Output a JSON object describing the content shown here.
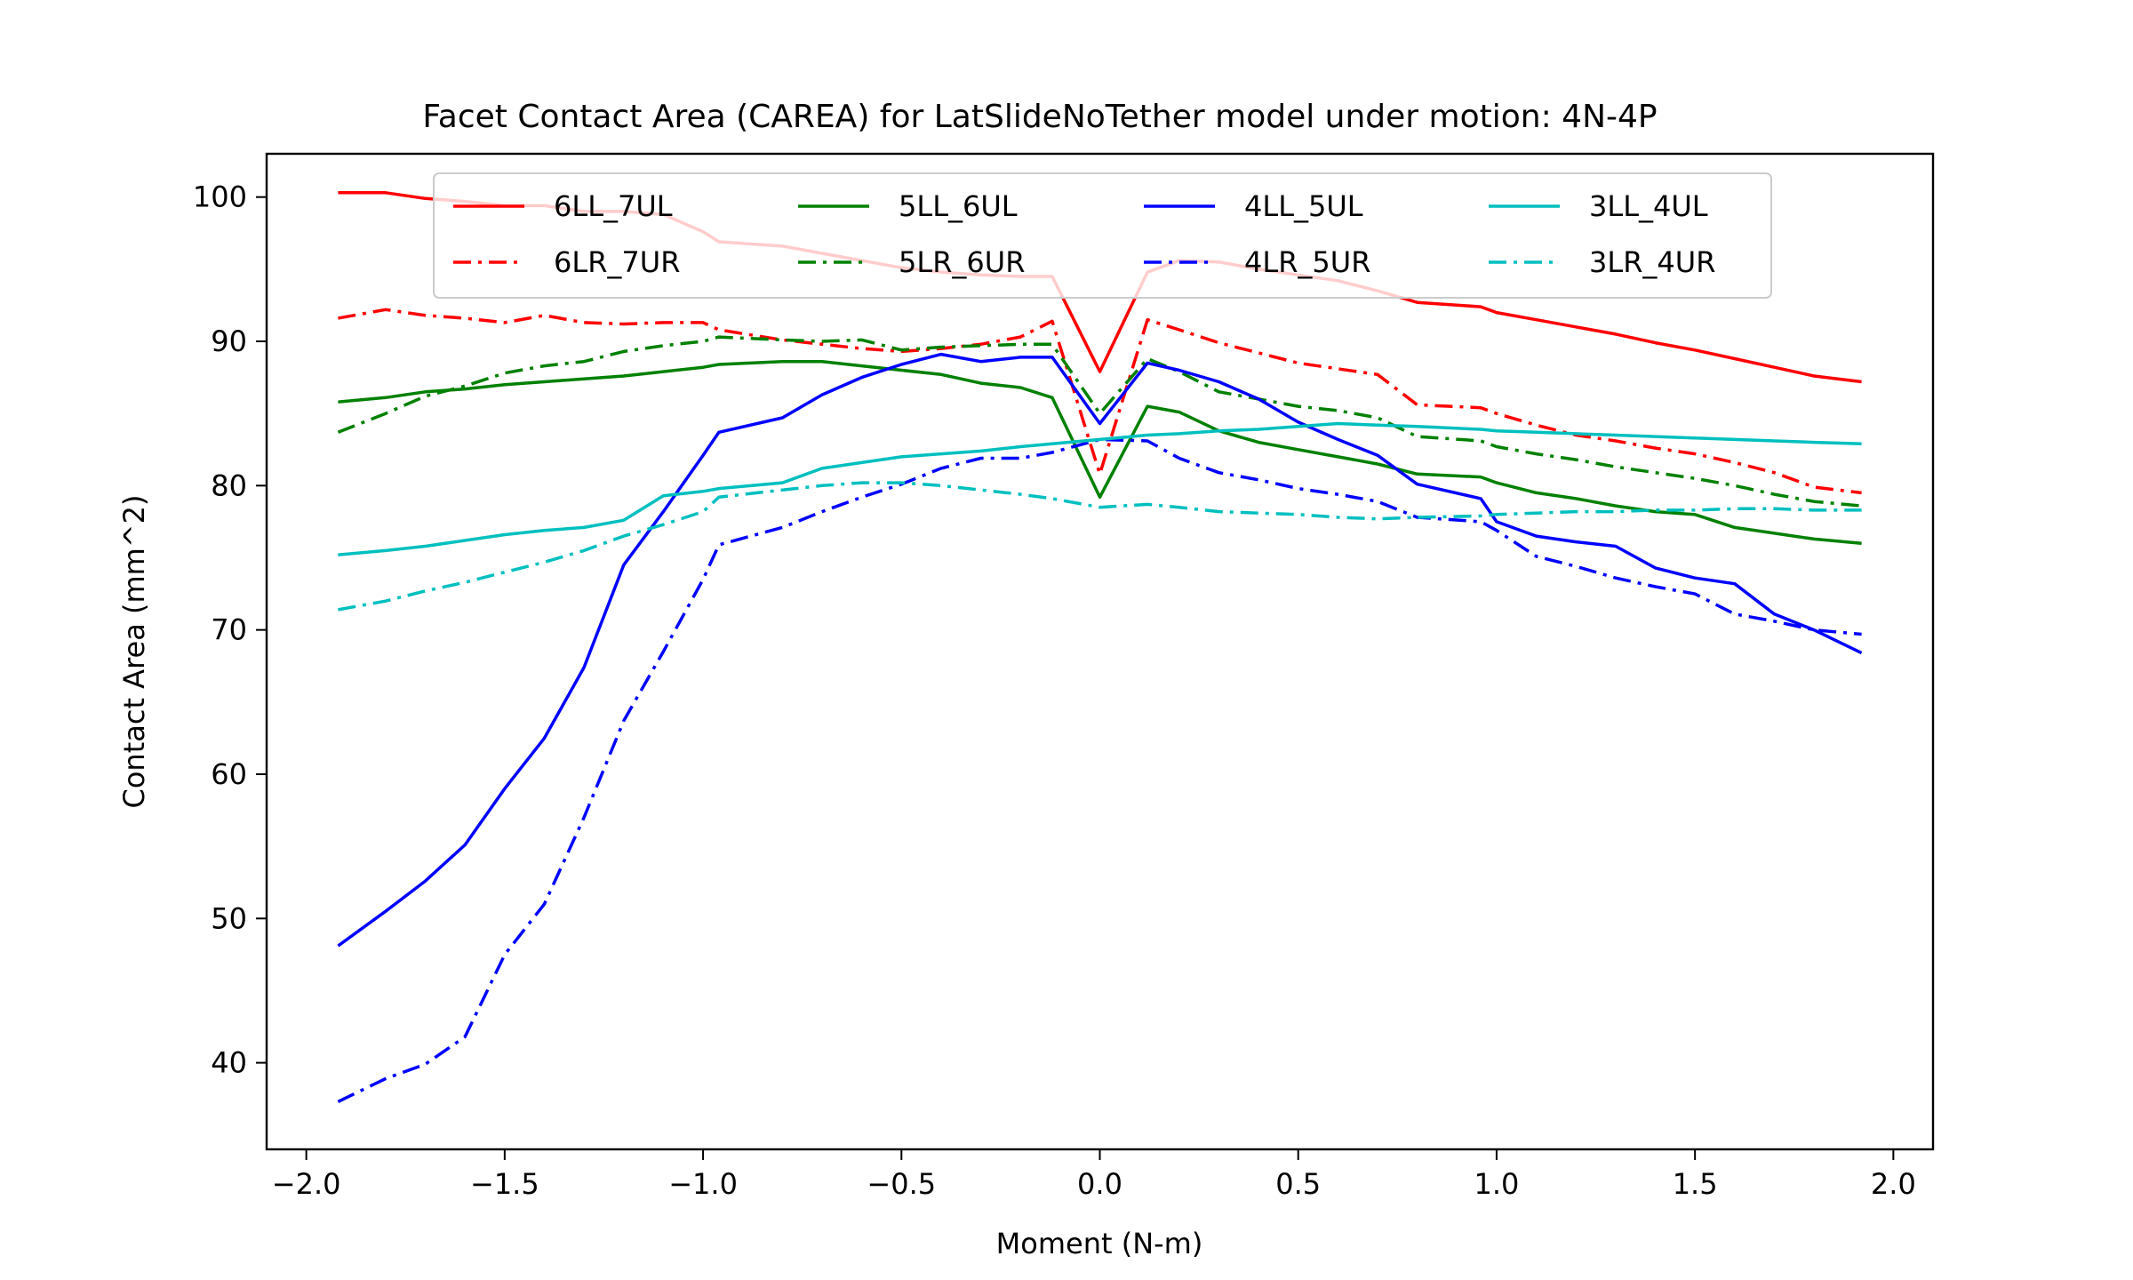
{
  "chart_data": {
    "type": "line",
    "title": "Facet Contact Area (CAREA) for LatSlideNoTether model under motion: 4N-4P",
    "xlabel": "Moment (N-m)",
    "ylabel": "Contact Area (mm^2)",
    "xlim": [
      -2.1,
      2.1
    ],
    "ylim": [
      34,
      103
    ],
    "xticks": [
      -2.0,
      -1.5,
      -1.0,
      -0.5,
      0.0,
      0.5,
      1.0,
      1.5,
      2.0
    ],
    "xtick_labels": [
      "−2.0",
      "−1.5",
      "−1.0",
      "−0.5",
      "0.0",
      "0.5",
      "1.0",
      "1.5",
      "2.0"
    ],
    "yticks": [
      40,
      50,
      60,
      70,
      80,
      90,
      100
    ],
    "ytick_labels": [
      "40",
      "50",
      "60",
      "70",
      "80",
      "90",
      "100"
    ],
    "grid": false,
    "legend": {
      "placement": "top-center",
      "columns": 4
    },
    "series": [
      {
        "name": "6LL_7UL",
        "color": "#ff0000",
        "dash": "solid",
        "x": [
          -1.92,
          -1.8,
          -1.7,
          -1.6,
          -1.5,
          -1.4,
          -1.3,
          -1.2,
          -1.1,
          -1.0,
          -0.96,
          -0.8,
          -0.7,
          -0.6,
          -0.5,
          -0.4,
          -0.3,
          -0.2,
          -0.12,
          0.0,
          0.12,
          0.2,
          0.3,
          0.4,
          0.5,
          0.6,
          0.7,
          0.8,
          0.96,
          1.0,
          1.1,
          1.2,
          1.3,
          1.4,
          1.5,
          1.6,
          1.7,
          1.8,
          1.92
        ],
        "y": [
          100.3,
          100.3,
          99.9,
          99.7,
          99.4,
          99.4,
          99.0,
          99.0,
          98.8,
          97.6,
          96.9,
          96.6,
          96.1,
          95.6,
          95.1,
          94.8,
          94.6,
          94.5,
          94.5,
          87.9,
          94.8,
          95.6,
          95.5,
          95.0,
          94.6,
          94.2,
          93.5,
          92.7,
          92.4,
          92.0,
          91.5,
          91.0,
          90.5,
          89.9,
          89.4,
          88.8,
          88.2,
          87.6,
          87.2
        ]
      },
      {
        "name": "6LR_7UR",
        "color": "#ff0000",
        "dash": "dashdot",
        "x": [
          -1.92,
          -1.8,
          -1.7,
          -1.6,
          -1.5,
          -1.4,
          -1.3,
          -1.2,
          -1.1,
          -1.0,
          -0.96,
          -0.8,
          -0.7,
          -0.6,
          -0.5,
          -0.4,
          -0.3,
          -0.2,
          -0.12,
          0.0,
          0.12,
          0.2,
          0.3,
          0.4,
          0.5,
          0.6,
          0.7,
          0.8,
          0.96,
          1.0,
          1.1,
          1.2,
          1.3,
          1.4,
          1.5,
          1.6,
          1.7,
          1.8,
          1.92
        ],
        "y": [
          91.6,
          92.2,
          91.8,
          91.6,
          91.3,
          91.8,
          91.3,
          91.2,
          91.3,
          91.3,
          90.8,
          90.1,
          89.8,
          89.5,
          89.3,
          89.5,
          89.8,
          90.3,
          91.4,
          80.8,
          91.5,
          90.8,
          89.9,
          89.2,
          88.5,
          88.1,
          87.7,
          85.6,
          85.4,
          85.0,
          84.2,
          83.5,
          83.1,
          82.6,
          82.2,
          81.6,
          80.9,
          79.9,
          79.5
        ]
      },
      {
        "name": "5LL_6UL",
        "color": "#008000",
        "dash": "solid",
        "x": [
          -1.92,
          -1.8,
          -1.7,
          -1.6,
          -1.5,
          -1.4,
          -1.3,
          -1.2,
          -1.1,
          -1.0,
          -0.96,
          -0.8,
          -0.7,
          -0.6,
          -0.5,
          -0.4,
          -0.3,
          -0.2,
          -0.12,
          0.0,
          0.12,
          0.2,
          0.3,
          0.4,
          0.5,
          0.6,
          0.7,
          0.8,
          0.96,
          1.0,
          1.1,
          1.2,
          1.3,
          1.4,
          1.5,
          1.6,
          1.7,
          1.8,
          1.92
        ],
        "y": [
          85.8,
          86.1,
          86.5,
          86.7,
          87.0,
          87.2,
          87.4,
          87.6,
          87.9,
          88.2,
          88.4,
          88.6,
          88.6,
          88.3,
          88.0,
          87.7,
          87.1,
          86.8,
          86.1,
          79.2,
          85.5,
          85.1,
          83.8,
          83.0,
          82.5,
          82.0,
          81.5,
          80.8,
          80.6,
          80.2,
          79.5,
          79.1,
          78.6,
          78.2,
          78.0,
          77.1,
          76.7,
          76.3,
          76.0
        ]
      },
      {
        "name": "5LR_6UR",
        "color": "#008000",
        "dash": "dashdot",
        "x": [
          -1.92,
          -1.8,
          -1.7,
          -1.6,
          -1.5,
          -1.4,
          -1.3,
          -1.2,
          -1.1,
          -1.0,
          -0.96,
          -0.8,
          -0.7,
          -0.6,
          -0.5,
          -0.4,
          -0.3,
          -0.2,
          -0.12,
          0.0,
          0.12,
          0.2,
          0.3,
          0.4,
          0.5,
          0.6,
          0.7,
          0.8,
          0.96,
          1.0,
          1.1,
          1.2,
          1.3,
          1.4,
          1.5,
          1.6,
          1.7,
          1.8,
          1.92
        ],
        "y": [
          83.7,
          85.0,
          86.2,
          86.9,
          87.8,
          88.3,
          88.6,
          89.3,
          89.7,
          90.0,
          90.3,
          90.1,
          90.0,
          90.1,
          89.4,
          89.6,
          89.7,
          89.8,
          89.8,
          85.0,
          88.8,
          87.9,
          86.5,
          86.0,
          85.5,
          85.2,
          84.7,
          83.4,
          83.1,
          82.7,
          82.2,
          81.8,
          81.3,
          80.9,
          80.5,
          80.0,
          79.4,
          78.9,
          78.6
        ]
      },
      {
        "name": "4LL_5UL",
        "color": "#0000ff",
        "dash": "solid",
        "x": [
          -1.92,
          -1.8,
          -1.7,
          -1.6,
          -1.5,
          -1.4,
          -1.3,
          -1.2,
          -1.1,
          -1.0,
          -0.96,
          -0.8,
          -0.7,
          -0.6,
          -0.5,
          -0.4,
          -0.3,
          -0.2,
          -0.12,
          0.0,
          0.12,
          0.2,
          0.3,
          0.4,
          0.5,
          0.6,
          0.7,
          0.8,
          0.96,
          1.0,
          1.1,
          1.2,
          1.3,
          1.4,
          1.5,
          1.6,
          1.7,
          1.8,
          1.92
        ],
        "y": [
          48.1,
          50.5,
          52.6,
          55.1,
          59.0,
          62.5,
          67.4,
          74.5,
          78.2,
          82.1,
          83.7,
          84.7,
          86.3,
          87.5,
          88.4,
          89.1,
          88.6,
          88.9,
          88.9,
          84.3,
          88.5,
          88.0,
          87.2,
          86.0,
          84.4,
          83.2,
          82.1,
          80.1,
          79.1,
          77.5,
          76.5,
          76.1,
          75.8,
          74.3,
          73.6,
          73.2,
          71.1,
          70.0,
          68.4
        ]
      },
      {
        "name": "4LR_5UR",
        "color": "#0000ff",
        "dash": "dashdot",
        "x": [
          -1.92,
          -1.8,
          -1.7,
          -1.6,
          -1.5,
          -1.4,
          -1.3,
          -1.2,
          -1.1,
          -1.0,
          -0.96,
          -0.8,
          -0.7,
          -0.6,
          -0.5,
          -0.4,
          -0.3,
          -0.2,
          -0.12,
          0.0,
          0.12,
          0.2,
          0.3,
          0.4,
          0.5,
          0.6,
          0.7,
          0.8,
          0.96,
          1.0,
          1.1,
          1.2,
          1.3,
          1.4,
          1.5,
          1.6,
          1.7,
          1.8,
          1.92
        ],
        "y": [
          37.3,
          38.9,
          39.9,
          41.8,
          47.5,
          51.0,
          57.0,
          63.7,
          68.5,
          73.5,
          75.9,
          77.1,
          78.2,
          79.2,
          80.1,
          81.2,
          81.9,
          81.9,
          82.3,
          83.2,
          83.1,
          81.9,
          80.9,
          80.4,
          79.8,
          79.4,
          78.9,
          77.8,
          77.5,
          76.9,
          75.1,
          74.4,
          73.6,
          73.0,
          72.5,
          71.1,
          70.6,
          70.0,
          69.7
        ]
      },
      {
        "name": "3LL_4UL",
        "color": "#00bfbf",
        "dash": "solid",
        "x": [
          -1.92,
          -1.8,
          -1.7,
          -1.6,
          -1.5,
          -1.4,
          -1.3,
          -1.2,
          -1.1,
          -1.0,
          -0.96,
          -0.8,
          -0.7,
          -0.6,
          -0.5,
          -0.4,
          -0.3,
          -0.2,
          -0.12,
          0.0,
          0.12,
          0.2,
          0.3,
          0.4,
          0.5,
          0.6,
          0.7,
          0.8,
          0.96,
          1.0,
          1.1,
          1.2,
          1.3,
          1.4,
          1.5,
          1.6,
          1.7,
          1.8,
          1.92
        ],
        "y": [
          75.2,
          75.5,
          75.8,
          76.2,
          76.6,
          76.9,
          77.1,
          77.6,
          79.3,
          79.6,
          79.8,
          80.2,
          81.2,
          81.6,
          82.0,
          82.2,
          82.4,
          82.7,
          82.9,
          83.2,
          83.5,
          83.6,
          83.8,
          83.9,
          84.1,
          84.3,
          84.2,
          84.1,
          83.9,
          83.8,
          83.7,
          83.6,
          83.5,
          83.4,
          83.3,
          83.2,
          83.1,
          83.0,
          82.9
        ]
      },
      {
        "name": "3LR_4UR",
        "color": "#00bfbf",
        "dash": "dashdot",
        "x": [
          -1.92,
          -1.8,
          -1.7,
          -1.6,
          -1.5,
          -1.4,
          -1.3,
          -1.2,
          -1.1,
          -1.0,
          -0.96,
          -0.8,
          -0.7,
          -0.6,
          -0.5,
          -0.4,
          -0.3,
          -0.2,
          -0.12,
          0.0,
          0.12,
          0.2,
          0.3,
          0.4,
          0.5,
          0.6,
          0.7,
          0.8,
          0.96,
          1.0,
          1.1,
          1.2,
          1.3,
          1.4,
          1.5,
          1.6,
          1.7,
          1.8,
          1.92
        ],
        "y": [
          71.4,
          72.0,
          72.7,
          73.3,
          74.0,
          74.7,
          75.5,
          76.5,
          77.3,
          78.2,
          79.2,
          79.7,
          80.0,
          80.2,
          80.2,
          80.0,
          79.7,
          79.4,
          79.1,
          78.5,
          78.7,
          78.5,
          78.2,
          78.1,
          78.0,
          77.8,
          77.7,
          77.8,
          77.9,
          78.0,
          78.1,
          78.2,
          78.2,
          78.3,
          78.3,
          78.4,
          78.4,
          78.3,
          78.3
        ]
      }
    ]
  }
}
